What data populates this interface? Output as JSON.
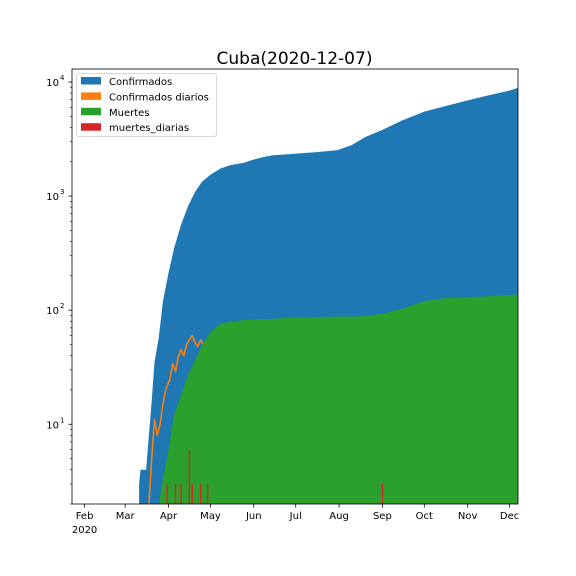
{
  "chart_data": {
    "type": "area",
    "title": "Cuba(2020-12-07)",
    "xlabel": "",
    "ylabel": "",
    "y_scale": "log",
    "ylim": [
      2,
      13000
    ],
    "xlim": [
      "2020-01-23",
      "2020-12-07"
    ],
    "x_ticks": [
      {
        "date": "2020-02-01",
        "label": "Feb",
        "year": "2020"
      },
      {
        "date": "2020-03-01",
        "label": "Mar"
      },
      {
        "date": "2020-04-01",
        "label": "Apr"
      },
      {
        "date": "2020-05-01",
        "label": "May"
      },
      {
        "date": "2020-06-01",
        "label": "Jun"
      },
      {
        "date": "2020-07-01",
        "label": "Jul"
      },
      {
        "date": "2020-08-01",
        "label": "Aug"
      },
      {
        "date": "2020-09-01",
        "label": "Sep"
      },
      {
        "date": "2020-10-01",
        "label": "Oct"
      },
      {
        "date": "2020-11-01",
        "label": "Nov"
      },
      {
        "date": "2020-12-01",
        "label": "Dec"
      }
    ],
    "y_ticks": [
      {
        "value": 10,
        "base": "10",
        "exp": "1"
      },
      {
        "value": 100,
        "base": "10",
        "exp": "2"
      },
      {
        "value": 1000,
        "base": "10",
        "exp": "3"
      },
      {
        "value": 10000,
        "base": "10",
        "exp": "4"
      }
    ],
    "legend_position": "top-left",
    "series": [
      {
        "name": "Confirmados",
        "color": "#1f77b4",
        "kind": "area",
        "points": [
          [
            "2020-03-11",
            3
          ],
          [
            "2020-03-12",
            4
          ],
          [
            "2020-03-16",
            4
          ],
          [
            "2020-03-18",
            8
          ],
          [
            "2020-03-20",
            16
          ],
          [
            "2020-03-22",
            35
          ],
          [
            "2020-03-25",
            57
          ],
          [
            "2020-03-28",
            119
          ],
          [
            "2020-04-01",
            212
          ],
          [
            "2020-04-05",
            350
          ],
          [
            "2020-04-10",
            564
          ],
          [
            "2020-04-15",
            814
          ],
          [
            "2020-04-20",
            1087
          ],
          [
            "2020-04-25",
            1337
          ],
          [
            "2020-05-01",
            1537
          ],
          [
            "2020-05-08",
            1741
          ],
          [
            "2020-05-15",
            1862
          ],
          [
            "2020-05-25",
            1963
          ],
          [
            "2020-06-01",
            2092
          ],
          [
            "2020-06-08",
            2200
          ],
          [
            "2020-06-15",
            2280
          ],
          [
            "2020-06-30",
            2348
          ],
          [
            "2020-07-15",
            2426
          ],
          [
            "2020-07-31",
            2532
          ],
          [
            "2020-08-10",
            2800
          ],
          [
            "2020-08-20",
            3300
          ],
          [
            "2020-09-01",
            3800
          ],
          [
            "2020-09-15",
            4600
          ],
          [
            "2020-10-01",
            5500
          ],
          [
            "2020-10-15",
            6100
          ],
          [
            "2020-11-01",
            6900
          ],
          [
            "2020-11-15",
            7600
          ],
          [
            "2020-12-01",
            8400
          ],
          [
            "2020-12-07",
            8900
          ]
        ]
      },
      {
        "name": "Confirmados diarios",
        "color": "#ff7f0e",
        "kind": "line",
        "points": [
          [
            "2020-03-18",
            2
          ],
          [
            "2020-03-20",
            5
          ],
          [
            "2020-03-22",
            11
          ],
          [
            "2020-03-24",
            8
          ],
          [
            "2020-03-26",
            10
          ],
          [
            "2020-03-28",
            15
          ],
          [
            "2020-03-30",
            20
          ],
          [
            "2020-04-02",
            25
          ],
          [
            "2020-04-04",
            34
          ],
          [
            "2020-04-06",
            29
          ],
          [
            "2020-04-08",
            39
          ],
          [
            "2020-04-10",
            45
          ],
          [
            "2020-04-12",
            40
          ],
          [
            "2020-04-14",
            50
          ],
          [
            "2020-04-16",
            55
          ],
          [
            "2020-04-18",
            60
          ],
          [
            "2020-04-20",
            52
          ],
          [
            "2020-04-22",
            48
          ],
          [
            "2020-04-24",
            55
          ],
          [
            "2020-04-26",
            50
          ],
          [
            "2020-04-28",
            45
          ],
          [
            "2020-04-30",
            38
          ],
          [
            "2020-05-02",
            45
          ],
          [
            "2020-05-04",
            30
          ],
          [
            "2020-05-06",
            20
          ],
          [
            "2020-05-08",
            25
          ],
          [
            "2020-05-10",
            14
          ],
          [
            "2020-05-12",
            20
          ],
          [
            "2020-05-14",
            10
          ],
          [
            "2020-05-16",
            18
          ],
          [
            "2020-05-18",
            12
          ],
          [
            "2020-05-20",
            22
          ],
          [
            "2020-05-22",
            8
          ],
          [
            "2020-05-24",
            15
          ],
          [
            "2020-05-26",
            6
          ],
          [
            "2020-05-28",
            12
          ],
          [
            "2020-05-30",
            4
          ],
          [
            "2020-06-01",
            10
          ],
          [
            "2020-06-03",
            5
          ],
          [
            "2020-06-05",
            12
          ],
          [
            "2020-06-07",
            4
          ],
          [
            "2020-06-09",
            8
          ],
          [
            "2020-06-11",
            3
          ],
          [
            "2020-06-13",
            5
          ],
          [
            "2020-06-15",
            2
          ],
          [
            "2020-06-17",
            5
          ],
          [
            "2020-06-19",
            3
          ],
          [
            "2020-06-21",
            6
          ],
          [
            "2020-06-25",
            2
          ],
          [
            "2020-06-30",
            3
          ],
          [
            "2020-07-03",
            2
          ],
          [
            "2020-07-06",
            5
          ],
          [
            "2020-07-08",
            3
          ],
          [
            "2020-07-12",
            2
          ],
          [
            "2020-07-16",
            4
          ],
          [
            "2020-07-20",
            3
          ],
          [
            "2020-07-24",
            5
          ],
          [
            "2020-07-26",
            3
          ],
          [
            "2020-07-28",
            6
          ],
          [
            "2020-07-30",
            10
          ],
          [
            "2020-08-02",
            18
          ],
          [
            "2020-08-04",
            12
          ],
          [
            "2020-08-06",
            35
          ],
          [
            "2020-08-08",
            25
          ],
          [
            "2020-08-10",
            55
          ],
          [
            "2020-08-12",
            45
          ],
          [
            "2020-08-14",
            70
          ],
          [
            "2020-08-16",
            50
          ],
          [
            "2020-08-18",
            60
          ],
          [
            "2020-08-20",
            40
          ],
          [
            "2020-08-22",
            65
          ],
          [
            "2020-08-24",
            38
          ],
          [
            "2020-08-26",
            55
          ],
          [
            "2020-08-28",
            30
          ],
          [
            "2020-08-30",
            50
          ],
          [
            "2020-09-01",
            33
          ],
          [
            "2020-09-03",
            60
          ],
          [
            "2020-09-05",
            40
          ],
          [
            "2020-09-07",
            80
          ],
          [
            "2020-09-09",
            45
          ],
          [
            "2020-09-11",
            60
          ],
          [
            "2020-09-13",
            30
          ],
          [
            "2020-09-15",
            50
          ],
          [
            "2020-09-17",
            28
          ],
          [
            "2020-09-19",
            45
          ],
          [
            "2020-09-21",
            40
          ],
          [
            "2020-09-23",
            55
          ],
          [
            "2020-09-25",
            35
          ],
          [
            "2020-09-27",
            50
          ],
          [
            "2020-09-29",
            38
          ],
          [
            "2020-10-01",
            30
          ],
          [
            "2020-10-03",
            50
          ],
          [
            "2020-10-05",
            25
          ],
          [
            "2020-10-07",
            40
          ],
          [
            "2020-10-09",
            20
          ],
          [
            "2020-10-11",
            35
          ],
          [
            "2020-10-13",
            5
          ],
          [
            "2020-10-15",
            30
          ],
          [
            "2020-10-17",
            45
          ],
          [
            "2020-10-19",
            35
          ],
          [
            "2020-10-21",
            55
          ],
          [
            "2020-10-23",
            40
          ],
          [
            "2020-10-25",
            60
          ],
          [
            "2020-10-27",
            45
          ],
          [
            "2020-10-29",
            50
          ],
          [
            "2020-10-31",
            35
          ],
          [
            "2020-11-02",
            55
          ],
          [
            "2020-11-04",
            40
          ],
          [
            "2020-11-06",
            60
          ],
          [
            "2020-11-08",
            45
          ],
          [
            "2020-11-10",
            35
          ],
          [
            "2020-11-12",
            55
          ],
          [
            "2020-11-14",
            40
          ],
          [
            "2020-11-16",
            28
          ],
          [
            "2020-11-18",
            50
          ],
          [
            "2020-11-20",
            35
          ],
          [
            "2020-11-22",
            55
          ],
          [
            "2020-11-24",
            40
          ],
          [
            "2020-11-26",
            70
          ],
          [
            "2020-11-28",
            50
          ],
          [
            "2020-11-30",
            80
          ],
          [
            "2020-12-02",
            60
          ],
          [
            "2020-12-04",
            100
          ],
          [
            "2020-12-06",
            70
          ],
          [
            "2020-12-07",
            110
          ]
        ]
      },
      {
        "name": "Muertes",
        "color": "#2ca02c",
        "kind": "area",
        "points": [
          [
            "2020-03-25",
            2
          ],
          [
            "2020-04-01",
            6
          ],
          [
            "2020-04-05",
            12
          ],
          [
            "2020-04-10",
            18
          ],
          [
            "2020-04-15",
            27
          ],
          [
            "2020-04-20",
            36
          ],
          [
            "2020-04-25",
            49
          ],
          [
            "2020-05-01",
            64
          ],
          [
            "2020-05-08",
            76
          ],
          [
            "2020-05-15",
            79
          ],
          [
            "2020-05-25",
            82
          ],
          [
            "2020-06-01",
            83
          ],
          [
            "2020-06-15",
            84
          ],
          [
            "2020-07-01",
            86
          ],
          [
            "2020-07-15",
            87
          ],
          [
            "2020-08-01",
            88
          ],
          [
            "2020-08-15",
            88
          ],
          [
            "2020-09-01",
            93
          ],
          [
            "2020-09-15",
            103
          ],
          [
            "2020-10-01",
            120
          ],
          [
            "2020-10-15",
            127
          ],
          [
            "2020-11-01",
            130
          ],
          [
            "2020-11-15",
            132
          ],
          [
            "2020-12-01",
            136
          ],
          [
            "2020-12-07",
            138
          ]
        ]
      },
      {
        "name": "muertes_diarias",
        "color": "#d62728",
        "kind": "bars",
        "points": [
          [
            "2020-03-31",
            3
          ],
          [
            "2020-04-03",
            2
          ],
          [
            "2020-04-06",
            3
          ],
          [
            "2020-04-08",
            2
          ],
          [
            "2020-04-10",
            3
          ],
          [
            "2020-04-14",
            2
          ],
          [
            "2020-04-16",
            6
          ],
          [
            "2020-04-18",
            3
          ],
          [
            "2020-04-20",
            2
          ],
          [
            "2020-04-22",
            2
          ],
          [
            "2020-04-24",
            3
          ],
          [
            "2020-04-26",
            2
          ],
          [
            "2020-04-29",
            3
          ],
          [
            "2020-09-01",
            3
          ]
        ]
      }
    ]
  }
}
